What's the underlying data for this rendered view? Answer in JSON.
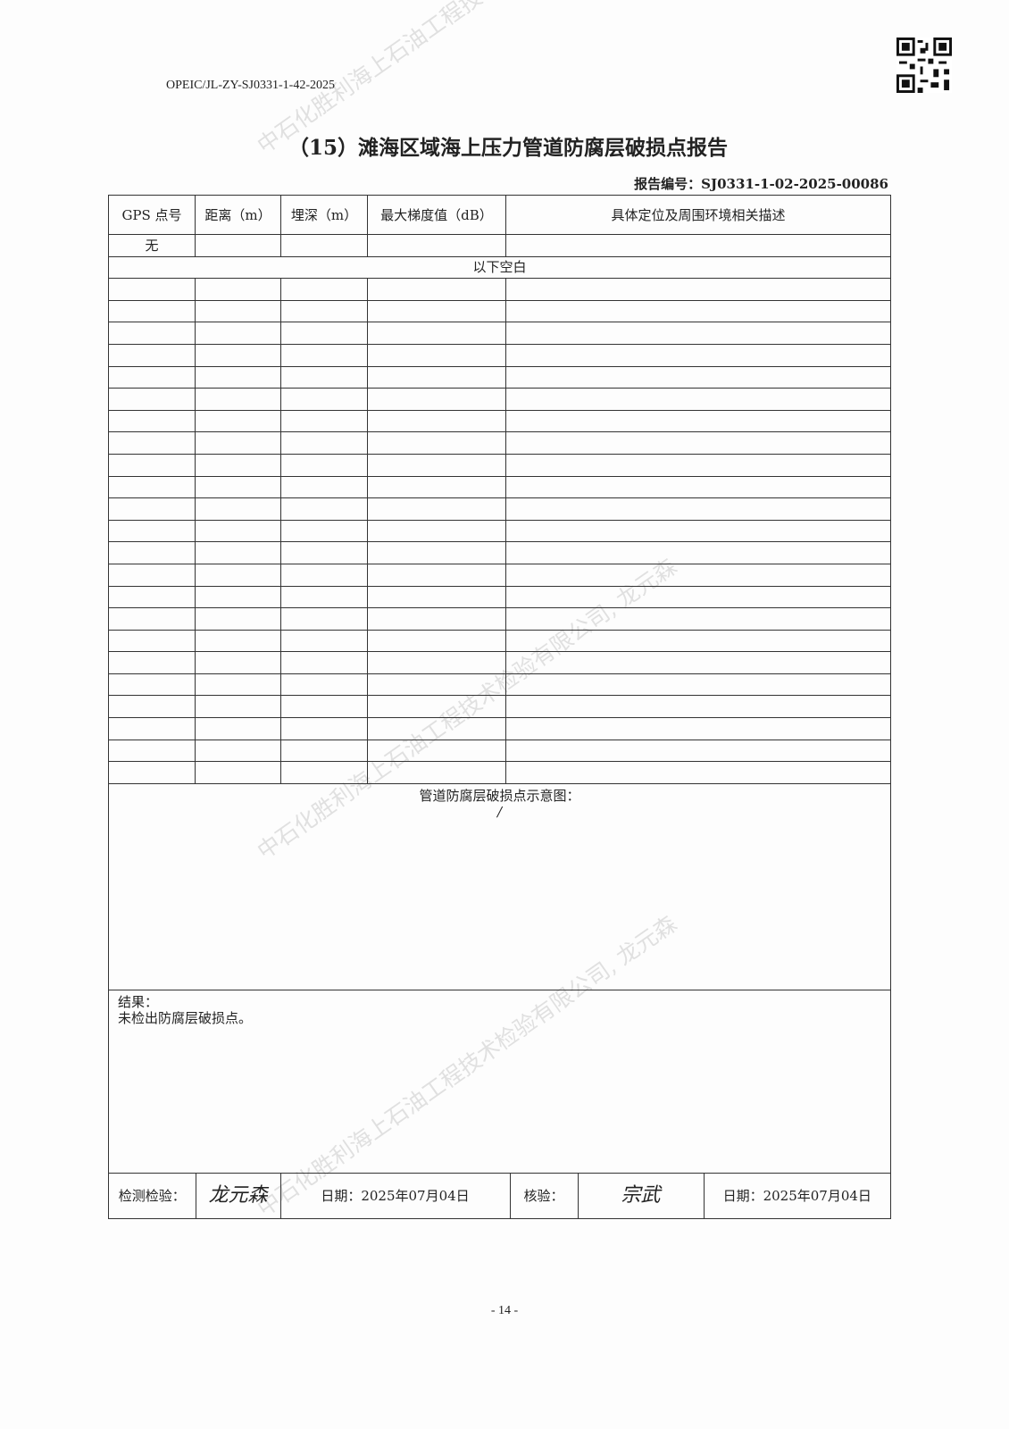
{
  "header": {
    "doc_code": "OPEIC/JL-ZY-SJ0331-1-42-2025",
    "title": "（15）滩海区域海上压力管道防腐层破损点报告",
    "report_no": "报告编号：SJ0331-1-02-2025-00086"
  },
  "table": {
    "columns": [
      "GPS 点号",
      "距离（m）",
      "埋深（m）",
      "最大梯度值（dB）",
      "具体定位及周围环境相关描述"
    ],
    "first_row": [
      "无",
      "",
      "",
      "",
      ""
    ],
    "blank_note": "以下空白"
  },
  "schematic": {
    "label": "管道防腐层破损点示意图：",
    "value": "/"
  },
  "result": {
    "label": "结果：",
    "text": "未检出防腐层破损点。"
  },
  "signoff": {
    "inspector_label": "检测检验：",
    "inspector_signature": "龙元森",
    "date1": "日期：2025年07月04日",
    "reviewer_label": "核验：",
    "reviewer_signature": "宗武",
    "date2": "日期：2025年07月04日"
  },
  "watermark": "中石化胜利海上石油工程技术检验有限公司, 龙元森",
  "page_number": "- 14 -"
}
